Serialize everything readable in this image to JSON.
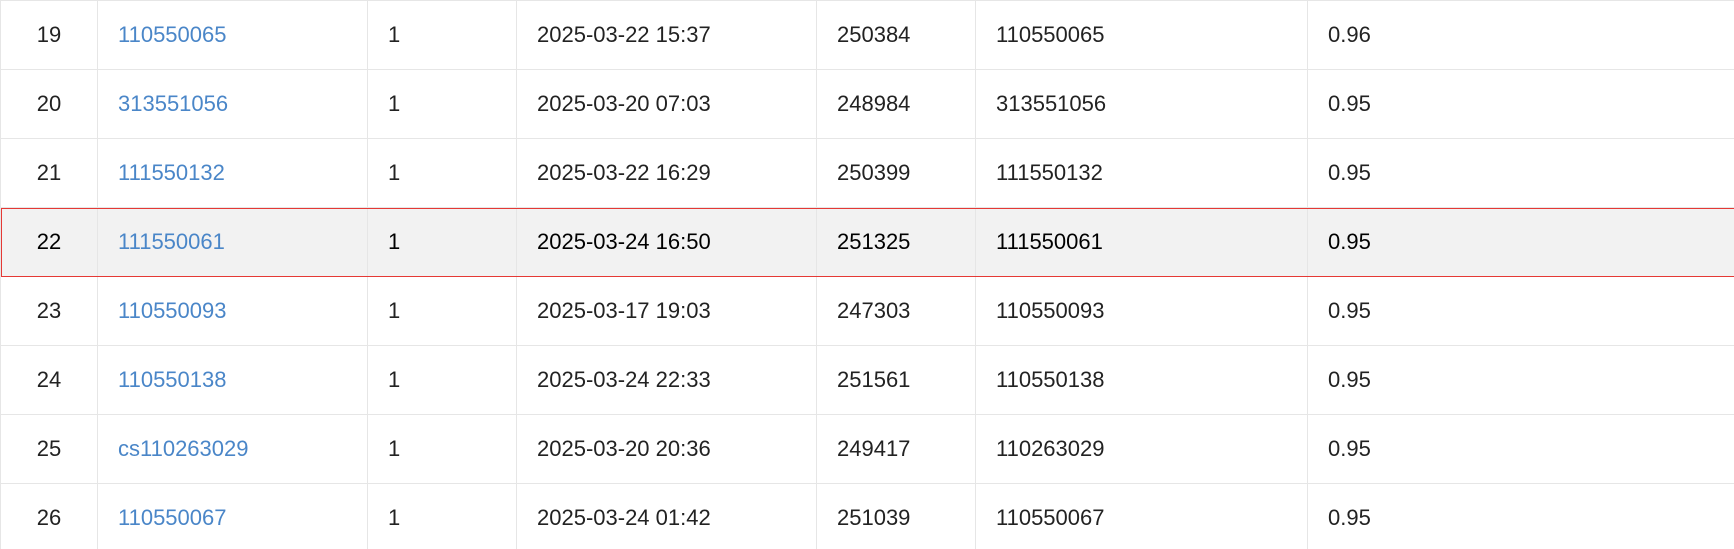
{
  "colors": {
    "link": "#4a86c8",
    "highlight_border": "#e53935",
    "highlight_bg": "#f2f2f2",
    "grid": "#e6e6e6"
  },
  "rows": [
    {
      "rank": "19",
      "user": "110550065",
      "solved": "1",
      "time": "2025-03-22 15:37",
      "id": "250384",
      "name": "110550065",
      "score": "0.96"
    },
    {
      "rank": "20",
      "user": "313551056",
      "solved": "1",
      "time": "2025-03-20 07:03",
      "id": "248984",
      "name": "313551056",
      "score": "0.95"
    },
    {
      "rank": "21",
      "user": "111550132",
      "solved": "1",
      "time": "2025-03-22 16:29",
      "id": "250399",
      "name": "111550132",
      "score": "0.95"
    },
    {
      "rank": "22",
      "user": "111550061",
      "solved": "1",
      "time": "2025-03-24 16:50",
      "id": "251325",
      "name": "111550061",
      "score": "0.95",
      "highlight": true
    },
    {
      "rank": "23",
      "user": "110550093",
      "solved": "1",
      "time": "2025-03-17 19:03",
      "id": "247303",
      "name": "110550093",
      "score": "0.95"
    },
    {
      "rank": "24",
      "user": "110550138",
      "solved": "1",
      "time": "2025-03-24 22:33",
      "id": "251561",
      "name": "110550138",
      "score": "0.95"
    },
    {
      "rank": "25",
      "user": "cs110263029",
      "solved": "1",
      "time": "2025-03-20 20:36",
      "id": "249417",
      "name": "110263029",
      "score": "0.95"
    },
    {
      "rank": "26",
      "user": "110550067",
      "solved": "1",
      "time": "2025-03-24 01:42",
      "id": "251039",
      "name": "110550067",
      "score": "0.95"
    }
  ]
}
